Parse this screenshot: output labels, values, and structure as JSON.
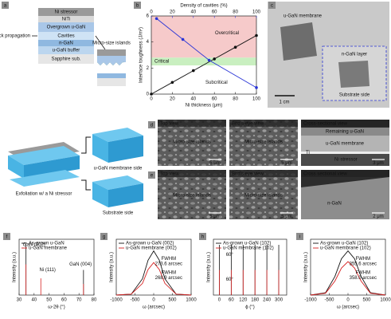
{
  "panel_labels": [
    "a",
    "b",
    "c",
    "d",
    "e",
    "f",
    "g",
    "h",
    "i"
  ],
  "a": {
    "layers": [
      "Ni stressor",
      "NiTi",
      "Overgrown u-GaN",
      "Cavities",
      "n-GaN",
      "u-GaN buffer",
      "Sapphire sub."
    ],
    "crack": "Crack propagation",
    "islands": "Micro-size islands"
  },
  "c": {
    "membrane": "u-GaN membrane",
    "inset": "n-GaN layer",
    "substrate": "Substrate side",
    "scale": "1 cm"
  },
  "d": {
    "side": "u-GaN membrane side",
    "views": [
      "Top view",
      "Bird's-eye view",
      "Cross-sectional view"
    ],
    "notes": [
      "Micro-size islands",
      "Micro-size islands",
      "Remaining u-GaN",
      "u-GaN membrane",
      "Ti",
      "Ni stressor"
    ],
    "scales": [
      "5 μm",
      "5 μm",
      "3 μm"
    ]
  },
  "e": {
    "process": "Exfoliation w/ a Ni stressor",
    "side": "Substrate side",
    "views": [
      "Top view",
      "Bird's eye view",
      "Cross sectional view"
    ],
    "notes": [
      "Micro-size islands",
      "Micro-size islands",
      "n-GaN"
    ],
    "scales": [
      "5 μm",
      "5 μm",
      "2 μm"
    ]
  },
  "chart_data": [
    {
      "type": "line",
      "xlabel": "Ni thickness (μm)",
      "ylabel": "Interface toughness (J/m²)",
      "x2label": "Density of cavities (%)",
      "xlim": [
        0,
        100
      ],
      "xticks": [
        0,
        20,
        40,
        60,
        80,
        100
      ],
      "x2lim": [
        0,
        100
      ],
      "x2ticks": [
        0,
        20,
        40,
        60,
        80,
        100
      ],
      "x2color": "#2a35d6",
      "ylim": [
        0,
        6
      ],
      "yticks": [
        0,
        2,
        4,
        6
      ],
      "markers": true,
      "bands": [
        {
          "label": "Overcritical",
          "from": 2.8,
          "to": 6,
          "color": "#f6caca",
          "label_color": "#d42020"
        },
        {
          "label": "Critical",
          "from": 2.2,
          "to": 2.8,
          "color": "#c9efc0",
          "label_color": "#1f9a1f"
        },
        {
          "label": "Subcritical",
          "from": 0,
          "to": 2.2,
          "color": "#ffffff",
          "label_color": "#111111"
        }
      ],
      "series": [
        {
          "color": "#111111",
          "x": [
            0,
            20,
            40,
            60,
            80,
            100
          ],
          "values": [
            0,
            0.9,
            1.8,
            2.7,
            3.6,
            4.5
          ]
        },
        {
          "color": "#2a35d6",
          "axis": "x2",
          "x": [
            5,
            30,
            55,
            100
          ],
          "values": [
            5.8,
            4.2,
            2.6,
            0.5
          ]
        }
      ]
    },
    {
      "type": "stem",
      "xlabel": "ω-2θ (°)",
      "ylabel": "Intensity (a.u.)",
      "xlim": [
        30,
        80
      ],
      "xticks": [
        30,
        40,
        50,
        60,
        70,
        80
      ],
      "ylim": [
        0,
        1
      ],
      "series": [
        {
          "name": "As-grown u-GaN",
          "color": "#111111",
          "x": [
            34.6,
            73
          ],
          "values": [
            0.9,
            0.45
          ]
        },
        {
          "name": "u-GaN membrane",
          "color": "#d62020",
          "x": [
            34.6,
            44.5,
            73
          ],
          "values": [
            0.55,
            0.3,
            0.2
          ]
        }
      ],
      "annotations": [
        "GaN (002)",
        "Ni (111)",
        "GaN (004)"
      ]
    },
    {
      "type": "line",
      "xlabel": "ω (arcsec)",
      "ylabel": "Intensity (a.u.)",
      "xlim": [
        -1000,
        1000
      ],
      "xticks": [
        -1000,
        -500,
        0,
        500,
        1000
      ],
      "ylim": [
        0,
        1.2
      ],
      "series": [
        {
          "name": "As-grown u-GaN (002)",
          "color": "#111111",
          "x": [
            -1000,
            -600,
            -300,
            -150,
            0,
            150,
            300,
            600,
            1000
          ],
          "values": [
            0,
            0.02,
            0.35,
            0.75,
            0.95,
            0.75,
            0.35,
            0.02,
            0
          ]
        },
        {
          "name": "u-GaN membrane (002)",
          "color": "#d62020",
          "x": [
            -1000,
            -600,
            -300,
            -150,
            0,
            150,
            300,
            600,
            1000
          ],
          "values": [
            0,
            0.02,
            0.25,
            0.55,
            0.7,
            0.55,
            0.25,
            0.02,
            0
          ]
        }
      ],
      "annotations": [
        "FWHM",
        "273.6 arcsec",
        "FWHM",
        "268.9 arcsec"
      ]
    },
    {
      "type": "stem",
      "xlabel": "ϕ (°)",
      "ylabel": "Intensity (a.u.)",
      "xlim": [
        -30,
        340
      ],
      "xticks": [
        0,
        60,
        120,
        180,
        240,
        300
      ],
      "ylim": [
        0,
        1
      ],
      "series": [
        {
          "name": "As-grown u-GaN (102)",
          "color": "#111111",
          "x": [
            0,
            60,
            120,
            180,
            240,
            300
          ],
          "values": [
            0.9,
            0.9,
            0.9,
            0.9,
            0.9,
            0.9
          ]
        },
        {
          "name": "u-GaN membrane (102)",
          "color": "#d62020",
          "x": [
            0,
            60,
            120,
            180,
            240,
            300
          ],
          "values": [
            0.45,
            0.45,
            0.45,
            0.45,
            0.45,
            0.45
          ]
        }
      ],
      "annotations": [
        "60°",
        "60°"
      ]
    },
    {
      "type": "line",
      "xlabel": "ω (arcsec)",
      "ylabel": "Intensity (a.u.)",
      "xlim": [
        -1000,
        1000
      ],
      "xticks": [
        -1000,
        -500,
        0,
        500,
        1000
      ],
      "ylim": [
        0,
        1.2
      ],
      "series": [
        {
          "name": "As-grown u-GaN (102)",
          "color": "#111111",
          "x": [
            -1000,
            -600,
            -350,
            -175,
            0,
            175,
            350,
            600,
            1000
          ],
          "values": [
            0,
            0.05,
            0.4,
            0.78,
            0.95,
            0.78,
            0.4,
            0.05,
            0
          ]
        },
        {
          "name": "u-GaN membrane (102)",
          "color": "#d62020",
          "x": [
            -1000,
            -600,
            -350,
            -175,
            0,
            175,
            350,
            600,
            1000
          ],
          "values": [
            0,
            0.04,
            0.3,
            0.58,
            0.72,
            0.58,
            0.3,
            0.04,
            0
          ]
        }
      ],
      "annotations": [
        "FWHM",
        "355.6 arcsec",
        "FWHM",
        "358.0 arcsec"
      ]
    }
  ]
}
